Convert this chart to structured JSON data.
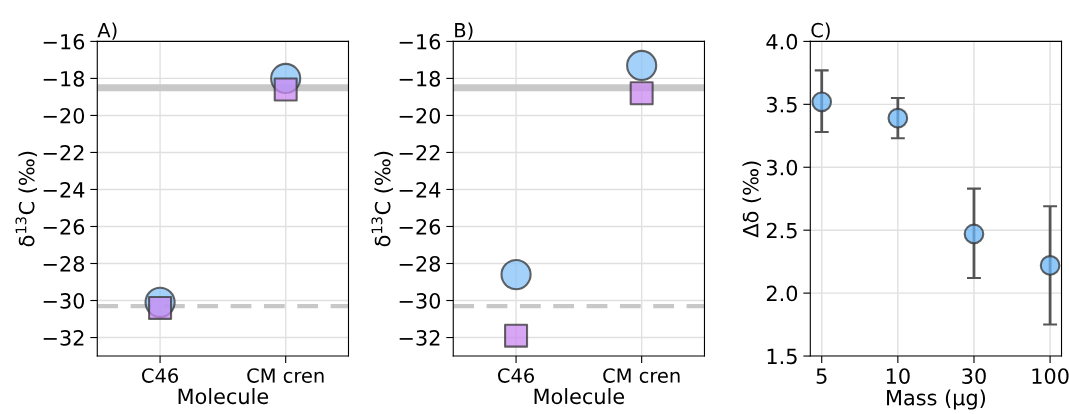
{
  "chart_data": [
    {
      "type": "scatter",
      "title": "A)",
      "xlabel": "Molecule",
      "ylabel": "δ$^{13}$C (‰)",
      "categories": [
        "C46",
        "CM cren"
      ],
      "ylim": [
        -33,
        -16
      ],
      "yticks": [
        -32,
        -30,
        -28,
        -26,
        -24,
        -22,
        -20,
        -18,
        -16
      ],
      "grid": true,
      "series": [
        {
          "color": "#85c1f7",
          "marker": "circle",
          "values": [
            -30.1,
            -18.0
          ]
        },
        {
          "color": "#c98af2",
          "marker": "square",
          "values": [
            -30.4,
            -18.6
          ]
        }
      ],
      "ref_lines": [
        {
          "axis": "y",
          "value": -18.5,
          "color": "#c8c8c8",
          "line_style": "solid"
        },
        {
          "axis": "y",
          "value": -30.3,
          "color": "#c8c8c8",
          "line_style": "dashed"
        }
      ]
    },
    {
      "type": "scatter",
      "title": "B)",
      "xlabel": "Molecule",
      "ylabel": "δ$^{13}$C (‰)",
      "categories": [
        "C46",
        "CM cren"
      ],
      "ylim": [
        -33,
        -16
      ],
      "yticks": [
        -32,
        -30,
        -28,
        -26,
        -24,
        -22,
        -20,
        -18,
        -16
      ],
      "grid": true,
      "series": [
        {
          "color": "#85c1f7",
          "marker": "circle",
          "values": [
            -28.6,
            -17.3
          ]
        },
        {
          "color": "#c98af2",
          "marker": "square",
          "values": [
            -31.9,
            -18.8
          ]
        }
      ],
      "ref_lines": [
        {
          "axis": "y",
          "value": -18.5,
          "color": "#c8c8c8",
          "line_style": "solid"
        },
        {
          "axis": "y",
          "value": -30.3,
          "color": "#c8c8c8",
          "line_style": "dashed"
        }
      ]
    },
    {
      "type": "scatter",
      "title": "C)",
      "xlabel": "Mass (μg)",
      "ylabel": "Δδ (‰)",
      "categories": [
        "5",
        "10",
        "30",
        "100"
      ],
      "ylim": [
        1.5,
        4.0
      ],
      "yticks": [
        {
          "value": 1.5,
          "label": "1.5"
        },
        {
          "value": 2.0,
          "label": "2.0"
        },
        {
          "value": 2.5,
          "label": "2.5"
        },
        {
          "value": 3.0,
          "label": "3.0"
        },
        {
          "value": 3.5,
          "label": "3.5"
        },
        {
          "value": 4.0,
          "label": "4.0"
        }
      ],
      "grid": true,
      "series": [
        {
          "color": "#6ab4f5",
          "marker": "circle",
          "values": [
            3.52,
            3.39,
            2.47,
            2.22
          ],
          "errors": [
            [
              3.28,
              3.77
            ],
            [
              3.23,
              3.55
            ],
            [
              2.12,
              2.83
            ],
            [
              1.75,
              2.69
            ]
          ]
        }
      ]
    }
  ]
}
